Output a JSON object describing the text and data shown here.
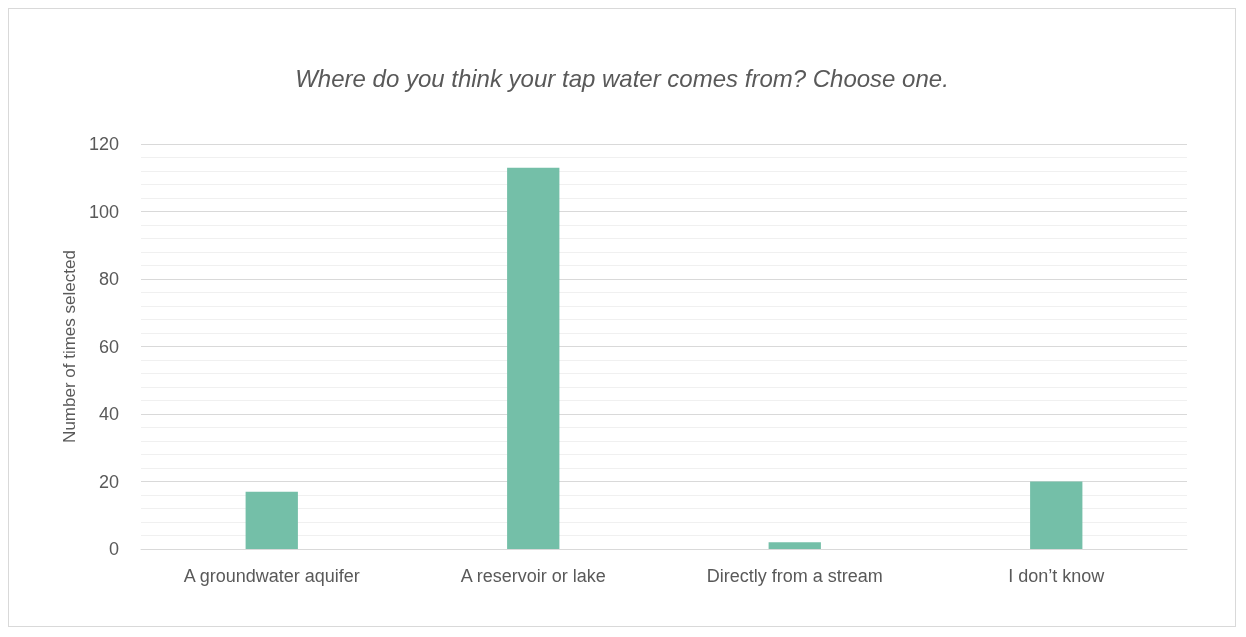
{
  "chart_data": {
    "type": "bar",
    "title": "Where do you think your tap water comes from? Choose one.",
    "ylabel": "Number of times selected",
    "categories": [
      "A groundwater aquifer",
      "A reservoir or lake",
      "Directly from a stream",
      "I don’t know"
    ],
    "values": [
      17,
      113,
      2,
      20
    ],
    "color": "#74bfa8",
    "ylim": [
      0,
      120
    ],
    "yticks": [
      0,
      20,
      40,
      60,
      80,
      100,
      120
    ],
    "grid": true
  }
}
